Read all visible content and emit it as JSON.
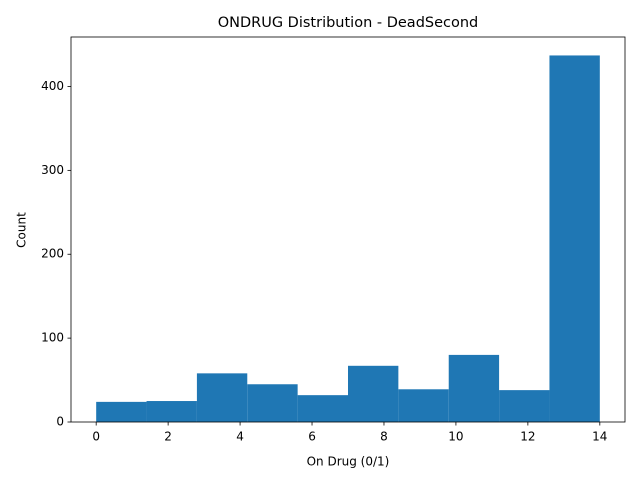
{
  "chart_data": {
    "type": "histogram",
    "title": "ONDRUG Distribution - DeadSecond",
    "xlabel": "On Drug (0/1)",
    "ylabel": "Count",
    "bins": [
      0,
      1.4,
      2.8,
      4.2,
      5.6,
      7,
      8.4,
      9.8,
      11.2,
      12.6,
      14
    ],
    "counts": [
      24,
      25,
      58,
      45,
      32,
      67,
      39,
      80,
      38,
      437
    ],
    "color": "#1f77b4",
    "xlim": [
      -0.7,
      14.7
    ],
    "xticks": [
      0,
      2,
      4,
      6,
      8,
      10,
      12,
      14
    ],
    "ylim": [
      0,
      459
    ],
    "yticks": [
      0,
      100,
      200,
      300,
      400
    ],
    "grid": false
  }
}
